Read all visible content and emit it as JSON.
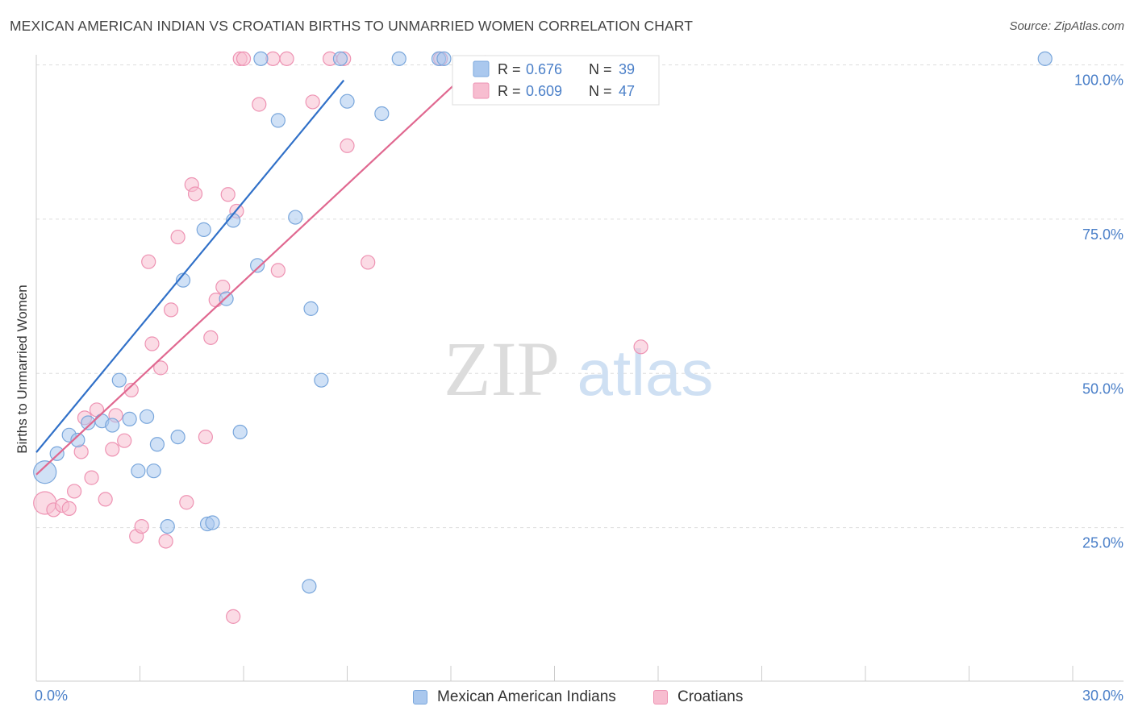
{
  "header": {
    "title": "MEXICAN AMERICAN INDIAN VS CROATIAN BIRTHS TO UNMARRIED WOMEN CORRELATION CHART",
    "source": "Source: ZipAtlas.com"
  },
  "watermark": {
    "zip": "ZIP",
    "atlas": "atlas"
  },
  "colors": {
    "blue_fill": "#aac8ee",
    "blue_stroke": "#7aa7dc",
    "blue_line": "#3070c8",
    "pink_fill": "#f7bdd0",
    "pink_stroke": "#ee93b3",
    "pink_line": "#e06890",
    "tick_label": "#4a7fc8",
    "grid": "#dddddd"
  },
  "chart_data": {
    "type": "scatter",
    "xlabel": "",
    "ylabel": "Births to Unmarried Women",
    "xlim": [
      0,
      30
    ],
    "ylim": [
      0,
      101
    ],
    "x_tick_labels": [
      "0.0%",
      "30.0%"
    ],
    "y_ticks": [
      25,
      50,
      75,
      100
    ],
    "y_tick_labels": [
      "25.0%",
      "50.0%",
      "75.0%",
      "100.0%"
    ],
    "grid": "horizontal dashed",
    "legend_position": "top-center",
    "series": [
      {
        "name": "Mexican American Indians",
        "color": "blue",
        "R": "0.676",
        "N": "39",
        "trend": {
          "x": [
            0,
            8.9
          ],
          "y": [
            37.2,
            97.5
          ]
        },
        "points": [
          {
            "x": 0.25,
            "y": 34,
            "big": true
          },
          {
            "x": 0.6,
            "y": 37.0
          },
          {
            "x": 0.95,
            "y": 40.0
          },
          {
            "x": 1.2,
            "y": 39.2
          },
          {
            "x": 1.5,
            "y": 42.0
          },
          {
            "x": 1.9,
            "y": 42.3
          },
          {
            "x": 2.2,
            "y": 41.6
          },
          {
            "x": 2.4,
            "y": 48.9
          },
          {
            "x": 2.7,
            "y": 42.6
          },
          {
            "x": 2.95,
            "y": 34.2
          },
          {
            "x": 3.2,
            "y": 43.0
          },
          {
            "x": 3.5,
            "y": 38.5
          },
          {
            "x": 3.4,
            "y": 34.2
          },
          {
            "x": 3.8,
            "y": 25.2
          },
          {
            "x": 4.1,
            "y": 39.7
          },
          {
            "x": 4.25,
            "y": 65.1
          },
          {
            "x": 4.85,
            "y": 73.3
          },
          {
            "x": 4.95,
            "y": 25.6
          },
          {
            "x": 5.1,
            "y": 25.8
          },
          {
            "x": 5.5,
            "y": 62.1
          },
          {
            "x": 5.7,
            "y": 74.8
          },
          {
            "x": 5.9,
            "y": 40.5
          },
          {
            "x": 6.4,
            "y": 67.5
          },
          {
            "x": 6.5,
            "y": 101.0
          },
          {
            "x": 7.0,
            "y": 91.0
          },
          {
            "x": 7.5,
            "y": 75.3
          },
          {
            "x": 7.9,
            "y": 15.5
          },
          {
            "x": 7.95,
            "y": 60.5
          },
          {
            "x": 8.25,
            "y": 48.9
          },
          {
            "x": 8.8,
            "y": 101.0
          },
          {
            "x": 9.0,
            "y": 94.1
          },
          {
            "x": 10.0,
            "y": 92.1
          },
          {
            "x": 10.5,
            "y": 101.0
          },
          {
            "x": 11.65,
            "y": 101.0
          },
          {
            "x": 11.8,
            "y": 101.0
          },
          {
            "x": 29.2,
            "y": 101.0
          }
        ]
      },
      {
        "name": "Croatians",
        "color": "pink",
        "R": "0.609",
        "N": "47",
        "trend": {
          "x": [
            0,
            13.0
          ],
          "y": [
            33.6,
            101.5
          ]
        },
        "points": [
          {
            "x": 0.25,
            "y": 29.0,
            "big": true
          },
          {
            "x": 0.5,
            "y": 27.9
          },
          {
            "x": 0.75,
            "y": 28.6
          },
          {
            "x": 0.95,
            "y": 28.1
          },
          {
            "x": 1.1,
            "y": 30.9
          },
          {
            "x": 1.3,
            "y": 37.3
          },
          {
            "x": 1.4,
            "y": 42.8
          },
          {
            "x": 1.6,
            "y": 33.1
          },
          {
            "x": 1.75,
            "y": 44.1
          },
          {
            "x": 2.0,
            "y": 29.6
          },
          {
            "x": 2.2,
            "y": 37.7
          },
          {
            "x": 2.3,
            "y": 43.2
          },
          {
            "x": 2.55,
            "y": 39.1
          },
          {
            "x": 2.75,
            "y": 47.3
          },
          {
            "x": 2.9,
            "y": 23.6
          },
          {
            "x": 3.05,
            "y": 25.2
          },
          {
            "x": 3.25,
            "y": 68.1
          },
          {
            "x": 3.35,
            "y": 54.8
          },
          {
            "x": 3.6,
            "y": 50.9
          },
          {
            "x": 3.75,
            "y": 22.8
          },
          {
            "x": 3.9,
            "y": 60.3
          },
          {
            "x": 4.1,
            "y": 72.1
          },
          {
            "x": 4.35,
            "y": 29.1
          },
          {
            "x": 4.5,
            "y": 80.6
          },
          {
            "x": 4.6,
            "y": 79.1
          },
          {
            "x": 4.9,
            "y": 39.7
          },
          {
            "x": 5.05,
            "y": 55.8
          },
          {
            "x": 5.2,
            "y": 61.9
          },
          {
            "x": 5.4,
            "y": 64.0
          },
          {
            "x": 5.55,
            "y": 79.0
          },
          {
            "x": 5.7,
            "y": 10.6
          },
          {
            "x": 5.8,
            "y": 76.3
          },
          {
            "x": 5.9,
            "y": 101.0
          },
          {
            "x": 6.0,
            "y": 101.0
          },
          {
            "x": 6.45,
            "y": 93.6
          },
          {
            "x": 6.85,
            "y": 101.0
          },
          {
            "x": 7.0,
            "y": 66.7
          },
          {
            "x": 7.25,
            "y": 101.0
          },
          {
            "x": 8.0,
            "y": 94.0
          },
          {
            "x": 8.5,
            "y": 101.0
          },
          {
            "x": 8.9,
            "y": 101.0
          },
          {
            "x": 9.0,
            "y": 86.9
          },
          {
            "x": 9.6,
            "y": 68.0
          },
          {
            "x": 11.7,
            "y": 101.0
          },
          {
            "x": 17.5,
            "y": 54.3
          }
        ]
      }
    ]
  }
}
